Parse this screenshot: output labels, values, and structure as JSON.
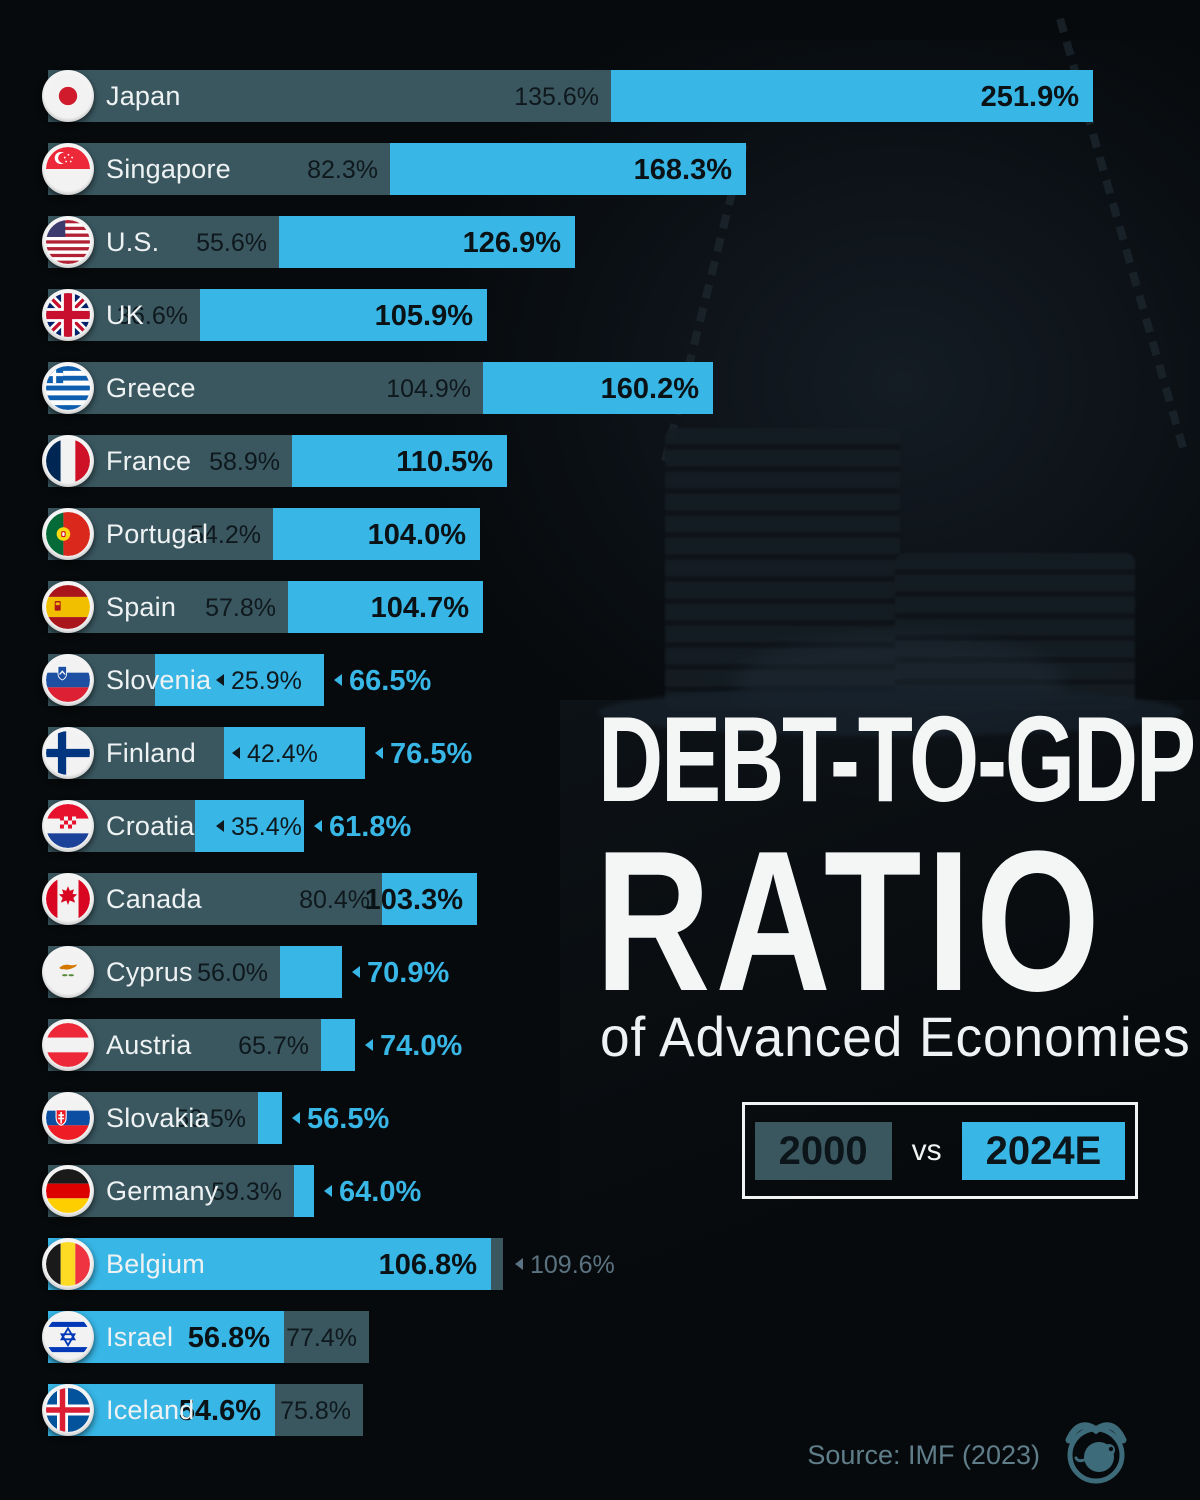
{
  "title": {
    "line1": "DEBT-TO-GDP",
    "line2": "RATIO",
    "subtitle": "of Advanced Economies"
  },
  "legend": {
    "year_2000": "2000",
    "vs": "vs",
    "year_2024": "2024E"
  },
  "source_note": "Source: IMF (2023)",
  "colors": {
    "background": "#070a0c",
    "bar_2000": "#3a5760",
    "bar_2024": "#38b6e6",
    "label_dark_text": "#0e181d",
    "label_bold_text": "#0a1215",
    "label_outside_2024": "#38b6e6",
    "label_outside_2000": "#5b7380",
    "country_text": "#eef2f3",
    "source_text": "#5f7e8a"
  },
  "chart_data": {
    "type": "bar",
    "orientation": "horizontal",
    "title": "DEBT-TO-GDP RATIO of Advanced Economies",
    "unit": "%",
    "legend_position": "right-middle",
    "grid": false,
    "categories": [
      "Japan",
      "Singapore",
      "U.S.",
      "UK",
      "Greece",
      "France",
      "Portugal",
      "Spain",
      "Slovenia",
      "Finland",
      "Croatia",
      "Canada",
      "Cyprus",
      "Austria",
      "Slovakia",
      "Germany",
      "Belgium",
      "Israel",
      "Iceland"
    ],
    "series": [
      {
        "name": "2000",
        "color": "#3a5760",
        "values": [
          135.6,
          82.3,
          55.6,
          36.6,
          104.9,
          58.9,
          54.2,
          57.8,
          25.9,
          42.4,
          35.4,
          80.4,
          56.0,
          65.7,
          50.5,
          59.3,
          109.6,
          77.4,
          75.8
        ]
      },
      {
        "name": "2024E",
        "color": "#38b6e6",
        "values": [
          251.9,
          168.3,
          126.9,
          105.9,
          160.2,
          110.5,
          104.0,
          104.7,
          66.5,
          76.5,
          61.8,
          103.3,
          70.9,
          74.0,
          56.5,
          64.0,
          106.8,
          56.8,
          54.6
        ]
      }
    ],
    "source": "IMF (2023)"
  },
  "rows": [
    {
      "country": "Japan",
      "flag": "jp",
      "v2000": 135.6,
      "v2024": 251.9,
      "label_2000": "135.6%",
      "label_2024": "251.9%",
      "p2000": "in",
      "p2024": "in"
    },
    {
      "country": "Singapore",
      "flag": "sg",
      "v2000": 82.3,
      "v2024": 168.3,
      "label_2000": "82.3%",
      "label_2024": "168.3%",
      "p2000": "in",
      "p2024": "in"
    },
    {
      "country": "U.S.",
      "flag": "us",
      "v2000": 55.6,
      "v2024": 126.9,
      "label_2000": "55.6%",
      "label_2024": "126.9%",
      "p2000": "in",
      "p2024": "in"
    },
    {
      "country": "UK",
      "flag": "uk",
      "v2000": 36.6,
      "v2024": 105.9,
      "label_2000": "36.6%",
      "label_2024": "105.9%",
      "p2000": "in",
      "p2024": "in"
    },
    {
      "country": "Greece",
      "flag": "gr",
      "v2000": 104.9,
      "v2024": 160.2,
      "label_2000": "104.9%",
      "label_2024": "160.2%",
      "p2000": "in",
      "p2024": "in"
    },
    {
      "country": "France",
      "flag": "fr",
      "v2000": 58.9,
      "v2024": 110.5,
      "label_2000": "58.9%",
      "label_2024": "110.5%",
      "p2000": "in",
      "p2024": "in"
    },
    {
      "country": "Portugal",
      "flag": "pt",
      "v2000": 54.2,
      "v2024": 104.0,
      "label_2000": "54.2%",
      "label_2024": "104.0%",
      "p2000": "in",
      "p2024": "in"
    },
    {
      "country": "Spain",
      "flag": "es",
      "v2000": 57.8,
      "v2024": 104.7,
      "label_2000": "57.8%",
      "label_2024": "104.7%",
      "p2000": "in",
      "p2024": "in"
    },
    {
      "country": "Slovenia",
      "flag": "si",
      "v2000": 25.9,
      "v2024": 66.5,
      "label_2000": "25.9%",
      "label_2024": "66.5%",
      "p2000": "after",
      "p2024": "out"
    },
    {
      "country": "Finland",
      "flag": "fi",
      "v2000": 42.4,
      "v2024": 76.5,
      "label_2000": "42.4%",
      "label_2024": "76.5%",
      "p2000": "after",
      "p2024": "out"
    },
    {
      "country": "Croatia",
      "flag": "hr",
      "v2000": 35.4,
      "v2024": 61.8,
      "label_2000": "35.4%",
      "label_2024": "61.8%",
      "p2000": "after",
      "p2024": "out"
    },
    {
      "country": "Canada",
      "flag": "ca",
      "v2000": 80.4,
      "v2024": 103.3,
      "label_2000": "80.4%",
      "label_2024": "103.3%",
      "p2000": "in",
      "p2024": "in"
    },
    {
      "country": "Cyprus",
      "flag": "cy",
      "v2000": 56.0,
      "v2024": 70.9,
      "label_2000": "56.0%",
      "label_2024": "70.9%",
      "p2000": "in",
      "p2024": "out"
    },
    {
      "country": "Austria",
      "flag": "at",
      "v2000": 65.7,
      "v2024": 74.0,
      "label_2000": "65.7%",
      "label_2024": "74.0%",
      "p2000": "in",
      "p2024": "out"
    },
    {
      "country": "Slovakia",
      "flag": "sk",
      "v2000": 50.5,
      "v2024": 56.5,
      "label_2000": "50.5%",
      "label_2024": "56.5%",
      "p2000": "in",
      "p2024": "out"
    },
    {
      "country": "Germany",
      "flag": "de",
      "v2000": 59.3,
      "v2024": 64.0,
      "label_2000": "59.3%",
      "label_2024": "64.0%",
      "p2000": "in",
      "p2024": "out"
    },
    {
      "country": "Belgium",
      "flag": "be",
      "v2000": 109.6,
      "v2024": 106.8,
      "label_2000": "109.6%",
      "label_2024": "106.8%",
      "p2000": "out",
      "p2024": "in"
    },
    {
      "country": "Israel",
      "flag": "il",
      "v2000": 77.4,
      "v2024": 56.8,
      "label_2000": "77.4%",
      "label_2024": "56.8%",
      "p2000": "in",
      "p2024": "in"
    },
    {
      "country": "Iceland",
      "flag": "is",
      "v2000": 75.8,
      "v2024": 54.6,
      "label_2000": "75.8%",
      "label_2024": "54.6%",
      "p2000": "in",
      "p2024": "in"
    }
  ]
}
